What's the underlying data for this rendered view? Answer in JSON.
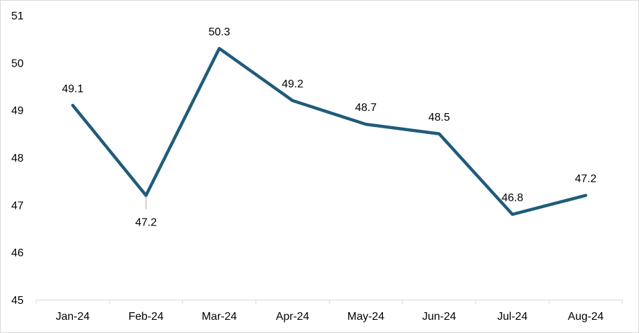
{
  "chart_data": {
    "type": "line",
    "title": "",
    "xlabel": "",
    "ylabel": "",
    "categories": [
      "Jan-24",
      "Feb-24",
      "Mar-24",
      "Apr-24",
      "May-24",
      "Jun-24",
      "Jul-24",
      "Aug-24"
    ],
    "series": [
      {
        "values": [
          49.1,
          47.2,
          50.3,
          49.2,
          48.7,
          48.5,
          46.8,
          47.2
        ],
        "labels": [
          "49.1",
          "47.2",
          "50.3",
          "49.2",
          "48.7",
          "48.5",
          "46.8",
          "47.2"
        ],
        "color": "#1f5c7a"
      }
    ],
    "ylim": [
      45,
      51
    ],
    "yticks": [
      "45",
      "46",
      "47",
      "48",
      "49",
      "50",
      "51"
    ],
    "grid": false,
    "legend": "none"
  }
}
